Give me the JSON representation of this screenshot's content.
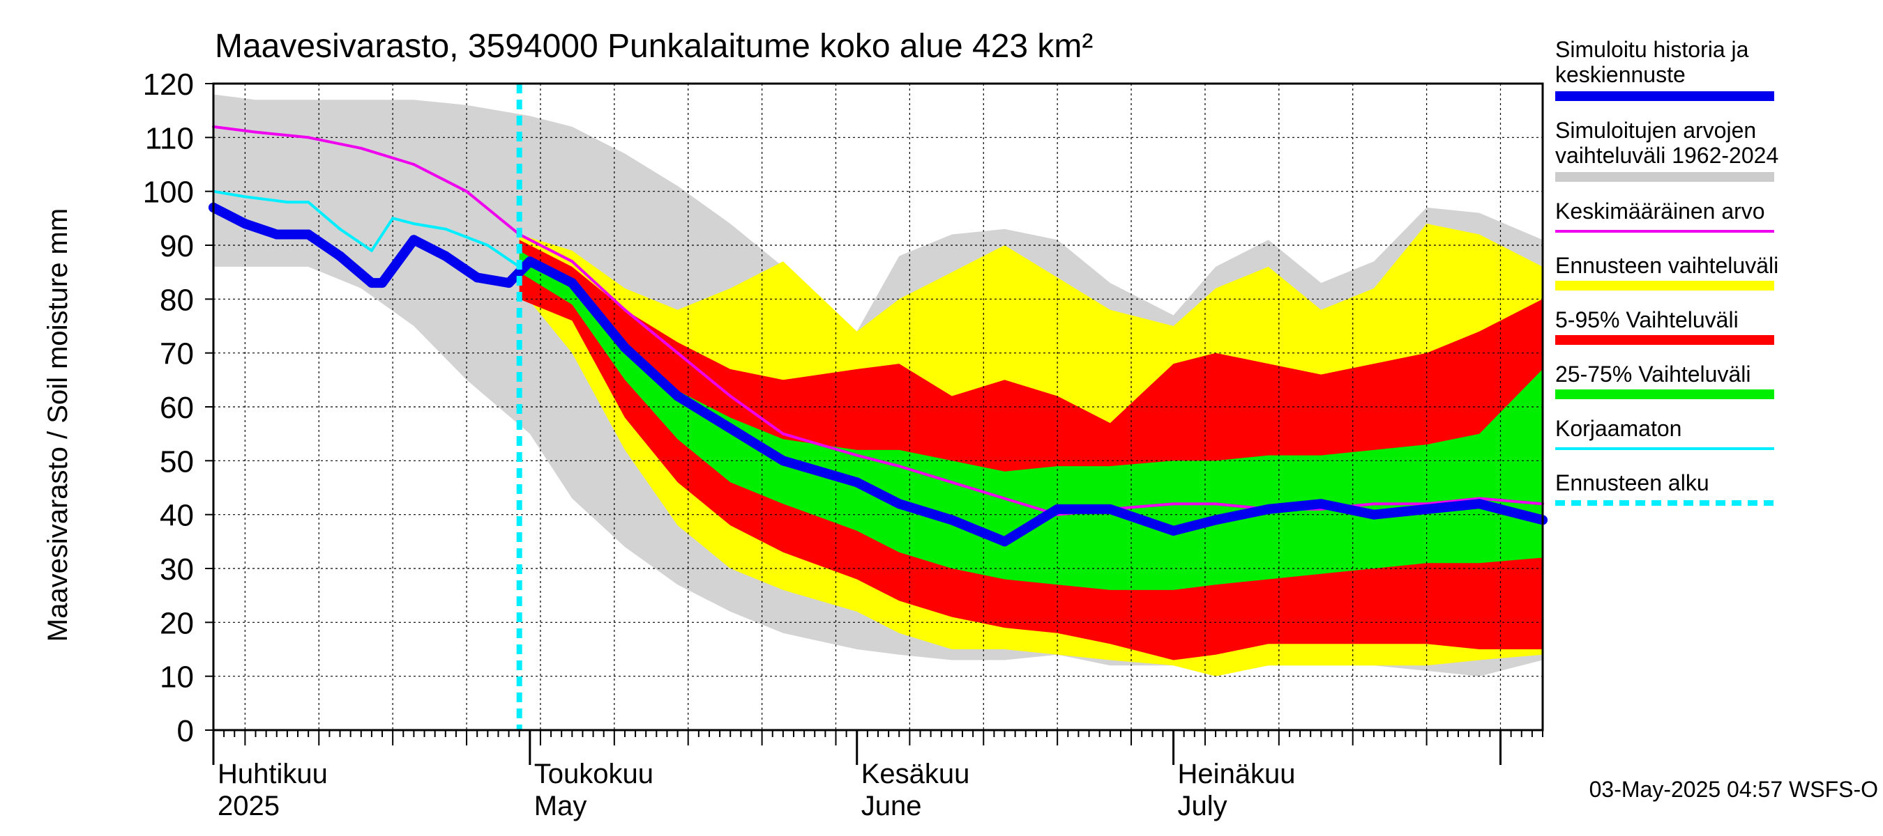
{
  "chart_data": {
    "type": "area",
    "title": "Maavesivarasto, 3594000 Punkalaitume koko alue 423 km²",
    "ylabel": "Maavesivarasto / Soil moisture   mm",
    "ylim": [
      0,
      120
    ],
    "yticks": [
      0,
      10,
      20,
      30,
      40,
      50,
      60,
      70,
      80,
      90,
      100,
      110,
      120
    ],
    "grid": true,
    "x_range": [
      "2025-04-01",
      "2025-08-05"
    ],
    "x_month_labels": [
      {
        "line1": "Huhtikuu",
        "line2": "2025",
        "date": "2025-04-01"
      },
      {
        "line1": "Toukokuu",
        "line2": "May",
        "date": "2025-05-01"
      },
      {
        "line1": "Kesäkuu",
        "line2": "June",
        "date": "2025-06-01"
      },
      {
        "line1": "Heinäkuu",
        "line2": "July",
        "date": "2025-07-01"
      }
    ],
    "forecast_start": "2025-04-30",
    "timestamp": "03-May-2025 04:57 WSFS-O",
    "legend_position": "right",
    "legend": [
      {
        "label_line1": "Simuloitu historia ja",
        "label_line2": "keskiennuste",
        "color": "#0000ee",
        "style": "thick"
      },
      {
        "label_line1": "Simuloitujen arvojen",
        "label_line2": "vaihteluväli 1962-2024",
        "color": "#cccccc",
        "style": "thick"
      },
      {
        "label_line1": "Keskimääräinen arvo",
        "label_line2": "",
        "color": "#ee00ee",
        "style": "thin"
      },
      {
        "label_line1": "Ennusteen vaihteluväli",
        "label_line2": "",
        "color": "#ffff00",
        "style": "thick"
      },
      {
        "label_line1": "5-95% Vaihteluväli",
        "label_line2": "",
        "color": "#ff0000",
        "style": "thick"
      },
      {
        "label_line1": "25-75% Vaihteluväli",
        "label_line2": "",
        "color": "#00ee00",
        "style": "thick"
      },
      {
        "label_line1": "Korjaamaton",
        "label_line2": "",
        "color": "#00eeff",
        "style": "thin"
      },
      {
        "label_line1": "Ennusteen alku",
        "label_line2": "",
        "color": "#00eeff",
        "style": "dashed"
      }
    ],
    "series": [
      {
        "id": "history_range",
        "name": "Simuloitujen arvojen vaihteluväli 1962-2024",
        "color": "#d3d3d3",
        "x": [
          "2025-04-01",
          "2025-04-05",
          "2025-04-10",
          "2025-04-15",
          "2025-04-20",
          "2025-04-25",
          "2025-05-01",
          "2025-05-05",
          "2025-05-10",
          "2025-05-15",
          "2025-05-20",
          "2025-05-25",
          "2025-06-01",
          "2025-06-05",
          "2025-06-10",
          "2025-06-15",
          "2025-06-20",
          "2025-06-25",
          "2025-07-01",
          "2025-07-05",
          "2025-07-10",
          "2025-07-15",
          "2025-07-20",
          "2025-07-25",
          "2025-07-30",
          "2025-08-05"
        ],
        "upper": [
          118,
          117,
          117,
          117,
          117,
          116,
          114,
          112,
          107,
          101,
          94,
          86,
          74,
          88,
          92,
          93,
          91,
          83,
          77,
          86,
          91,
          83,
          87,
          97,
          96,
          91
        ],
        "lower": [
          86,
          86,
          86,
          82,
          75,
          65,
          55,
          43,
          34,
          27,
          22,
          18,
          15,
          14,
          13,
          13,
          14,
          12,
          12,
          11,
          12,
          12,
          12,
          11,
          10,
          13
        ]
      },
      {
        "id": "forecast_range",
        "name": "Ennusteen vaihteluväli",
        "color": "#ffff00",
        "x": [
          "2025-04-30",
          "2025-05-05",
          "2025-05-10",
          "2025-05-15",
          "2025-05-20",
          "2025-05-25",
          "2025-06-01",
          "2025-06-05",
          "2025-06-10",
          "2025-06-15",
          "2025-06-20",
          "2025-06-25",
          "2025-07-01",
          "2025-07-05",
          "2025-07-10",
          "2025-07-15",
          "2025-07-20",
          "2025-07-25",
          "2025-07-30",
          "2025-08-05"
        ],
        "upper": [
          92,
          89,
          82,
          78,
          82,
          87,
          74,
          80,
          85,
          90,
          84,
          78,
          75,
          82,
          86,
          78,
          82,
          94,
          92,
          86
        ],
        "lower": [
          82,
          70,
          52,
          38,
          30,
          26,
          22,
          18,
          15,
          15,
          14,
          13,
          12,
          10,
          12,
          12,
          12,
          12,
          13,
          14
        ]
      },
      {
        "id": "p5_95",
        "name": "5-95% Vaihteluväli",
        "color": "#ff0000",
        "x": [
          "2025-04-30",
          "2025-05-05",
          "2025-05-10",
          "2025-05-15",
          "2025-05-20",
          "2025-05-25",
          "2025-06-01",
          "2025-06-05",
          "2025-06-10",
          "2025-06-15",
          "2025-06-20",
          "2025-06-25",
          "2025-07-01",
          "2025-07-05",
          "2025-07-10",
          "2025-07-15",
          "2025-07-20",
          "2025-07-25",
          "2025-07-30",
          "2025-08-05"
        ],
        "upper": [
          91,
          86,
          78,
          72,
          67,
          65,
          67,
          68,
          62,
          65,
          62,
          57,
          68,
          70,
          68,
          66,
          68,
          70,
          74,
          80
        ],
        "lower": [
          80,
          76,
          58,
          46,
          38,
          33,
          28,
          24,
          21,
          19,
          18,
          16,
          13,
          14,
          16,
          16,
          16,
          16,
          15,
          15
        ]
      },
      {
        "id": "p25_75",
        "name": "25-75% Vaihteluväli",
        "color": "#00ee00",
        "x": [
          "2025-04-30",
          "2025-05-05",
          "2025-05-10",
          "2025-05-15",
          "2025-05-20",
          "2025-05-25",
          "2025-06-01",
          "2025-06-05",
          "2025-06-10",
          "2025-06-15",
          "2025-06-20",
          "2025-06-25",
          "2025-07-01",
          "2025-07-05",
          "2025-07-10",
          "2025-07-15",
          "2025-07-20",
          "2025-07-25",
          "2025-07-30",
          "2025-08-05"
        ],
        "upper": [
          89,
          83,
          72,
          63,
          58,
          54,
          52,
          52,
          50,
          48,
          49,
          49,
          50,
          50,
          51,
          51,
          52,
          53,
          55,
          67
        ],
        "lower": [
          85,
          79,
          65,
          54,
          46,
          42,
          37,
          33,
          30,
          28,
          27,
          26,
          26,
          27,
          28,
          29,
          30,
          31,
          31,
          32
        ]
      },
      {
        "id": "mean",
        "name": "Keskimääräinen arvo",
        "color": "#ee00ee",
        "x": [
          "2025-04-01",
          "2025-04-05",
          "2025-04-10",
          "2025-04-15",
          "2025-04-20",
          "2025-04-25",
          "2025-04-30",
          "2025-05-05",
          "2025-05-10",
          "2025-05-15",
          "2025-05-20",
          "2025-05-25",
          "2025-06-01",
          "2025-06-05",
          "2025-06-10",
          "2025-06-15",
          "2025-06-20",
          "2025-06-25",
          "2025-07-01",
          "2025-07-05",
          "2025-07-10",
          "2025-07-15",
          "2025-07-20",
          "2025-07-25",
          "2025-07-30",
          "2025-08-05"
        ],
        "values": [
          112,
          111,
          110,
          108,
          105,
          100,
          92,
          87,
          78,
          70,
          62,
          55,
          51,
          49,
          46,
          43,
          40,
          41,
          42,
          42,
          41,
          41,
          42,
          42,
          43,
          42
        ]
      },
      {
        "id": "uncorrected",
        "name": "Korjaamaton",
        "color": "#00eeff",
        "x": [
          "2025-04-01",
          "2025-04-04",
          "2025-04-08",
          "2025-04-10",
          "2025-04-13",
          "2025-04-16",
          "2025-04-18",
          "2025-04-20",
          "2025-04-23",
          "2025-04-27",
          "2025-04-30"
        ],
        "values": [
          100,
          99,
          98,
          98,
          93,
          89,
          95,
          94,
          93,
          90,
          86
        ]
      },
      {
        "id": "median",
        "name": "Simuloitu historia ja keskiennuste",
        "color": "#0000ee",
        "x": [
          "2025-04-01",
          "2025-04-04",
          "2025-04-07",
          "2025-04-10",
          "2025-04-13",
          "2025-04-16",
          "2025-04-17",
          "2025-04-20",
          "2025-04-23",
          "2025-04-26",
          "2025-04-29",
          "2025-05-01",
          "2025-05-05",
          "2025-05-10",
          "2025-05-15",
          "2025-05-20",
          "2025-05-25",
          "2025-06-01",
          "2025-06-05",
          "2025-06-10",
          "2025-06-15",
          "2025-06-20",
          "2025-06-25",
          "2025-07-01",
          "2025-07-05",
          "2025-07-10",
          "2025-07-15",
          "2025-07-20",
          "2025-07-25",
          "2025-07-30",
          "2025-08-05"
        ],
        "values": [
          97,
          94,
          92,
          92,
          88,
          83,
          83,
          91,
          88,
          84,
          83,
          87,
          83,
          71,
          62,
          56,
          50,
          46,
          42,
          39,
          35,
          41,
          41,
          37,
          39,
          41,
          42,
          40,
          41,
          42,
          39
        ]
      }
    ]
  }
}
